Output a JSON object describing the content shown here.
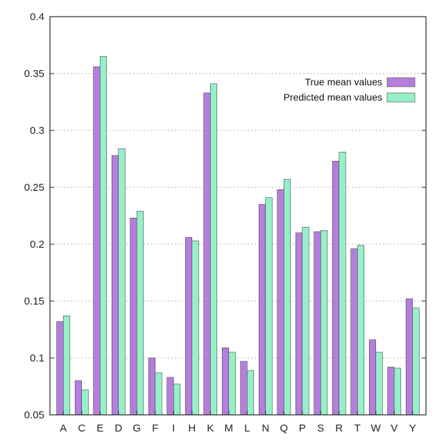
{
  "chart_data": {
    "type": "bar",
    "title": "",
    "xlabel": "",
    "ylabel": "",
    "categories": [
      "A",
      "C",
      "E",
      "D",
      "G",
      "F",
      "I",
      "H",
      "K",
      "M",
      "L",
      "N",
      "Q",
      "P",
      "S",
      "R",
      "T",
      "W",
      "V",
      "Y"
    ],
    "series": [
      {
        "name": "True mean values",
        "color": "#b57edc",
        "values": [
          0.132,
          0.08,
          0.356,
          0.278,
          0.223,
          0.1,
          0.083,
          0.206,
          0.333,
          0.109,
          0.097,
          0.235,
          0.248,
          0.21,
          0.211,
          0.273,
          0.196,
          0.116,
          0.092,
          0.152
        ]
      },
      {
        "name": "Predicted mean values",
        "color": "#96f0c8",
        "values": [
          0.137,
          0.072,
          0.365,
          0.284,
          0.229,
          0.087,
          0.077,
          0.203,
          0.341,
          0.105,
          0.089,
          0.241,
          0.257,
          0.215,
          0.212,
          0.281,
          0.199,
          0.105,
          0.091,
          0.144
        ]
      }
    ],
    "ylim": [
      0.05,
      0.4
    ],
    "yticks": [
      "0.05",
      "0.1",
      "0.15",
      "0.2",
      "0.25",
      "0.3",
      "0.35",
      "0.4"
    ],
    "grid": "horizontal dashed",
    "legend_position": "top-right",
    "bar_stroke": "#444444"
  }
}
